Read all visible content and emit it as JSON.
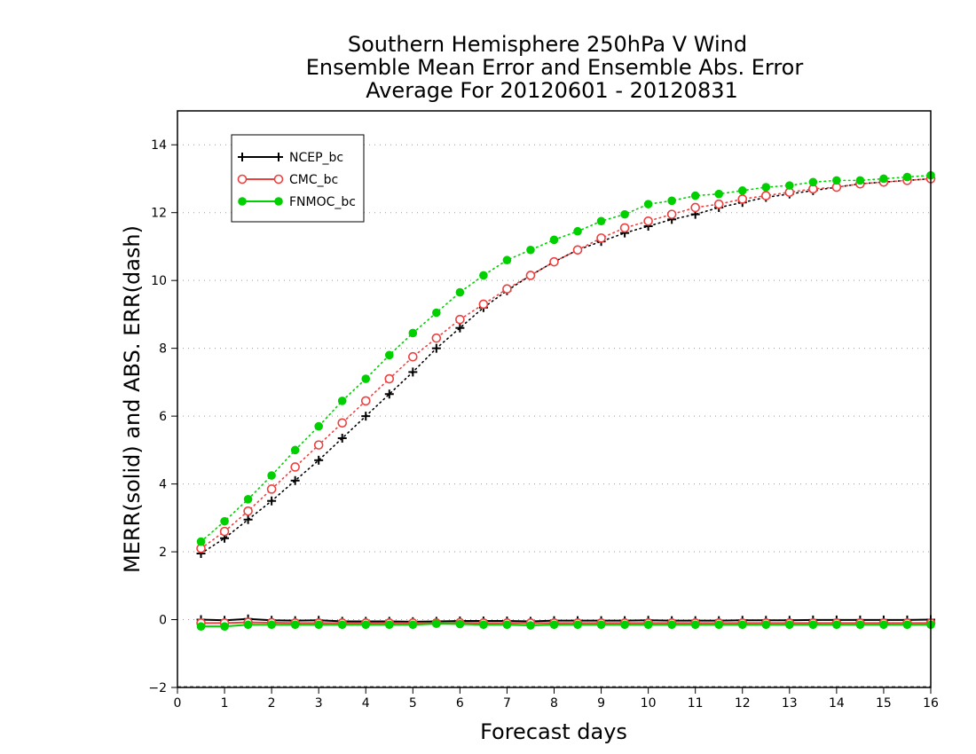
{
  "chart_data": {
    "type": "line",
    "title": [
      "Southern Hemisphere 250hPa V Wind",
      "Ensemble Mean Error and Ensemble Abs. Error",
      "Average For 20120601 - 20120831"
    ],
    "xlabel": "Forecast days",
    "ylabel": "MERR(solid) and ABS. ERR(dash)",
    "xlim": [
      0,
      16
    ],
    "ylim": [
      -2,
      15
    ],
    "xticks": [
      0,
      1,
      2,
      3,
      4,
      5,
      6,
      7,
      8,
      9,
      10,
      11,
      12,
      13,
      14,
      15,
      16
    ],
    "yticks": [
      -2,
      0,
      2,
      4,
      6,
      8,
      10,
      12,
      14
    ],
    "grid": "horizontal-dotted",
    "legend_position": "top-left",
    "x": [
      0.5,
      1,
      1.5,
      2,
      2.5,
      3,
      3.5,
      4,
      4.5,
      5,
      5.5,
      6,
      6.5,
      7,
      7.5,
      8,
      8.5,
      9,
      9.5,
      10,
      10.5,
      11,
      11.5,
      12,
      12.5,
      13,
      13.5,
      14,
      14.5,
      15,
      15.5,
      16
    ],
    "series": [
      {
        "name": "NCEP_bc",
        "color": "#000000",
        "marker": "plus",
        "abs_err": [
          1.95,
          2.4,
          2.95,
          3.5,
          4.1,
          4.7,
          5.35,
          6.0,
          6.65,
          7.3,
          8.0,
          8.6,
          9.2,
          9.7,
          10.15,
          10.55,
          10.9,
          11.15,
          11.4,
          11.6,
          11.8,
          11.95,
          12.15,
          12.3,
          12.45,
          12.55,
          12.65,
          12.75,
          12.85,
          12.9,
          12.95,
          13.0
        ],
        "mean_err": [
          0.0,
          -0.02,
          0.02,
          -0.02,
          -0.03,
          -0.02,
          -0.05,
          -0.05,
          -0.05,
          -0.06,
          -0.05,
          -0.04,
          -0.04,
          -0.04,
          -0.05,
          -0.03,
          -0.03,
          -0.03,
          -0.03,
          -0.02,
          -0.03,
          -0.03,
          -0.03,
          -0.02,
          -0.02,
          -0.02,
          -0.01,
          -0.01,
          -0.01,
          -0.01,
          -0.01,
          0.0
        ]
      },
      {
        "name": "CMC_bc",
        "color": "#ef4040",
        "marker": "open-circle",
        "abs_err": [
          2.1,
          2.6,
          3.2,
          3.85,
          4.5,
          5.15,
          5.8,
          6.45,
          7.1,
          7.75,
          8.3,
          8.85,
          9.3,
          9.75,
          10.15,
          10.55,
          10.9,
          11.25,
          11.55,
          11.75,
          11.95,
          12.15,
          12.25,
          12.4,
          12.5,
          12.6,
          12.7,
          12.75,
          12.85,
          12.9,
          12.95,
          13.0
        ],
        "mean_err": [
          -0.1,
          -0.1,
          -0.08,
          -0.09,
          -0.1,
          -0.1,
          -0.1,
          -0.1,
          -0.1,
          -0.1,
          -0.1,
          -0.09,
          -0.1,
          -0.1,
          -0.1,
          -0.1,
          -0.1,
          -0.1,
          -0.1,
          -0.1,
          -0.1,
          -0.1,
          -0.1,
          -0.1,
          -0.1,
          -0.1,
          -0.1,
          -0.1,
          -0.1,
          -0.1,
          -0.1,
          -0.1
        ]
      },
      {
        "name": "FNMOC_bc",
        "color": "#00d000",
        "marker": "filled-circle",
        "abs_err": [
          2.3,
          2.9,
          3.55,
          4.25,
          5.0,
          5.7,
          6.45,
          7.1,
          7.8,
          8.45,
          9.05,
          9.65,
          10.15,
          10.6,
          10.9,
          11.2,
          11.45,
          11.75,
          11.95,
          12.25,
          12.35,
          12.5,
          12.55,
          12.65,
          12.75,
          12.8,
          12.9,
          12.95,
          12.95,
          13.0,
          13.05,
          13.1
        ],
        "mean_err": [
          -0.2,
          -0.2,
          -0.15,
          -0.15,
          -0.15,
          -0.15,
          -0.15,
          -0.15,
          -0.15,
          -0.15,
          -0.12,
          -0.13,
          -0.15,
          -0.15,
          -0.17,
          -0.15,
          -0.15,
          -0.15,
          -0.15,
          -0.15,
          -0.15,
          -0.15,
          -0.15,
          -0.15,
          -0.15,
          -0.15,
          -0.15,
          -0.15,
          -0.15,
          -0.15,
          -0.15,
          -0.15
        ]
      }
    ]
  }
}
